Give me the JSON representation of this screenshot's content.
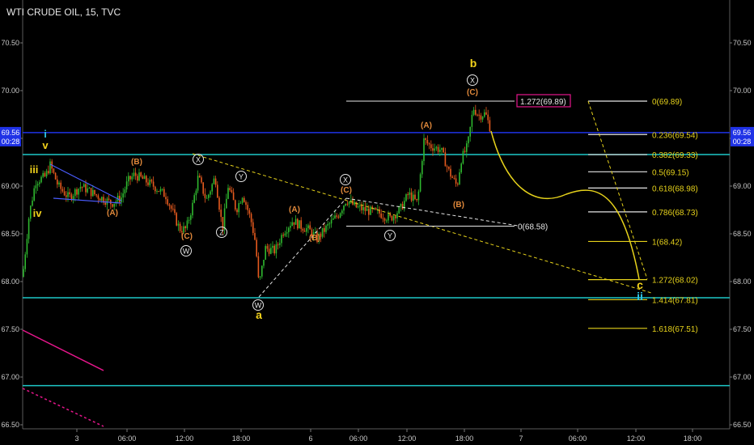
{
  "header": {
    "title": "WTI CRUDE OIL, 15, TVC"
  },
  "chart_data": {
    "type": "candlestick",
    "title": "WTI CRUDE OIL, 15, TVC",
    "ylim": [
      66.48,
      70.85
    ],
    "y_ticks": [
      "70.50",
      "70.00",
      "69.50",
      "69.00",
      "68.50",
      "68.00",
      "67.50",
      "67.00",
      "66.50"
    ],
    "x_ticks": [
      "3",
      "06:00",
      "12:00",
      "18:00",
      "6",
      "06:00",
      "12:00",
      "18:00",
      "7",
      "06:00",
      "12:00",
      "18:00"
    ],
    "price_badge": {
      "value": "69.56",
      "time": "00:28"
    },
    "horizontal_lines": [
      {
        "name": "current-price-line",
        "y": 69.56,
        "color": "#1f32e6"
      },
      {
        "name": "resistance-line",
        "y": 69.33,
        "color": "#1ec8c8"
      },
      {
        "name": "support-line",
        "y": 67.83,
        "color": "#1ec8c8"
      },
      {
        "name": "lower-support-line",
        "y": 66.91,
        "color": "#1ec8c8"
      }
    ],
    "fib_levels": [
      {
        "label": "0(69.89)",
        "value": 69.89
      },
      {
        "label": "0.236(69.54)",
        "value": 69.54
      },
      {
        "label": "0.382(69.33)",
        "value": 69.33
      },
      {
        "label": "0.5(69.15)",
        "value": 69.15
      },
      {
        "label": "0.618(68.98)",
        "value": 68.98
      },
      {
        "label": "0.786(68.73)",
        "value": 68.73
      },
      {
        "label": "1(68.42)",
        "value": 68.42
      },
      {
        "label": "1.272(68.02)",
        "value": 68.02
      },
      {
        "label": "1.414(67.81)",
        "value": 67.81
      },
      {
        "label": "1.618(67.51)",
        "value": 67.51
      }
    ],
    "extension_box_label": "1.272(69.89)",
    "triangle_base_label": "0(68.58)",
    "wave_labels": [
      {
        "text": "i",
        "color": "#2ec4e6"
      },
      {
        "text": "v",
        "color": "#f2d21b"
      },
      {
        "text": "iii",
        "color": "#f2d21b"
      },
      {
        "text": "iv",
        "color": "#f2d21b"
      },
      {
        "text": "(A)",
        "color": "#e0883a"
      },
      {
        "text": "(B)",
        "color": "#e0883a"
      },
      {
        "text": "(C)",
        "color": "#e0883a"
      },
      {
        "text": "(A)",
        "color": "#e0883a"
      },
      {
        "text": "(B)",
        "color": "#e0883a"
      },
      {
        "text": "(C)",
        "color": "#e0883a"
      },
      {
        "text": "(A)",
        "color": "#e0883a"
      },
      {
        "text": "(B)",
        "color": "#e0883a"
      },
      {
        "text": "(C)",
        "color": "#e0883a"
      },
      {
        "text": "a",
        "color": "#f2d21b"
      },
      {
        "text": "b",
        "color": "#f2d21b"
      },
      {
        "text": "c",
        "color": "#f2d21b"
      },
      {
        "text": "ii",
        "color": "#2ec4e6"
      }
    ],
    "circled_labels": [
      "W",
      "X",
      "Y",
      "Z",
      "W",
      "X",
      "Y",
      "X"
    ]
  }
}
